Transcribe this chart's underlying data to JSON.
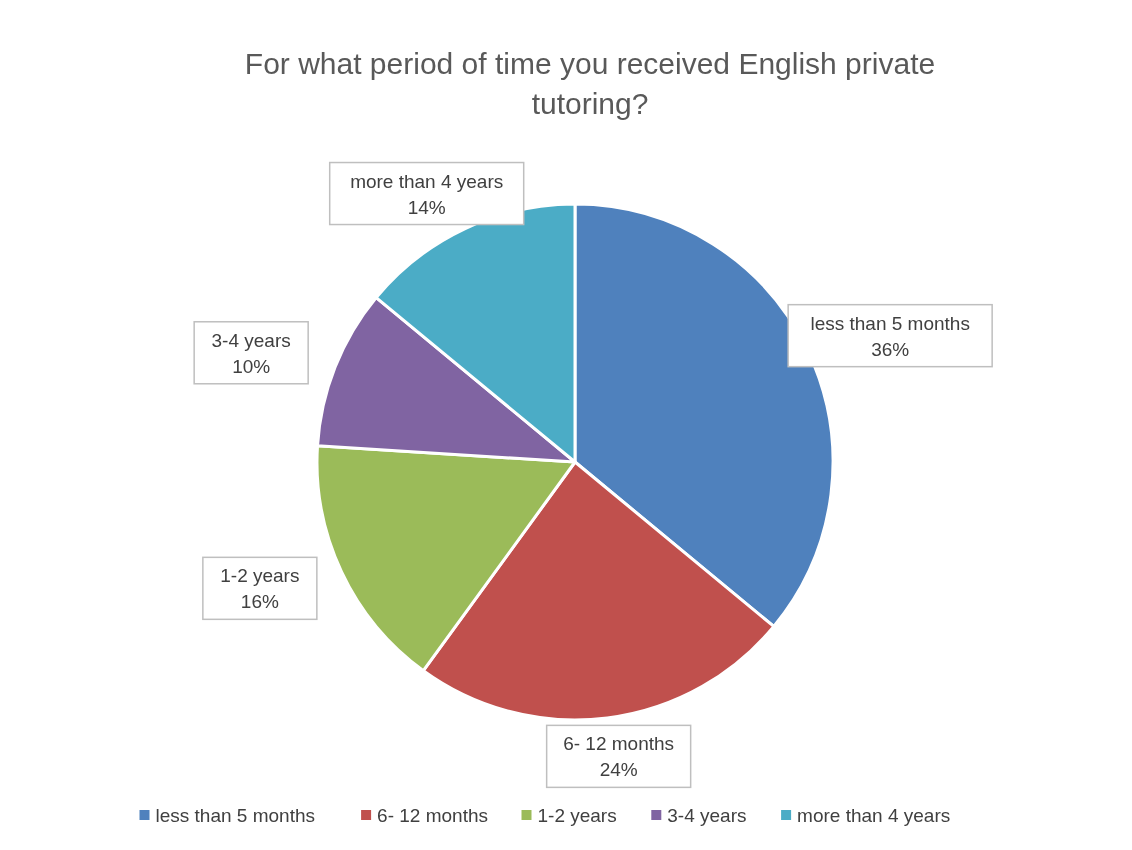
{
  "chart_data": {
    "type": "pie",
    "title": "For what period of time you received English private tutoring?",
    "categories": [
      "less than 5 months",
      "6- 12 months",
      "1-2 years",
      "3-4 years",
      "more than 4 years"
    ],
    "values": [
      36,
      24,
      16,
      10,
      14
    ],
    "colors": [
      "#4f81bd",
      "#c0504d",
      "#9bbb59",
      "#8064a2",
      "#4bacc6"
    ],
    "value_labels": [
      "36%",
      "24%",
      "16%",
      "10%",
      "14%"
    ],
    "legend": "bottom"
  }
}
